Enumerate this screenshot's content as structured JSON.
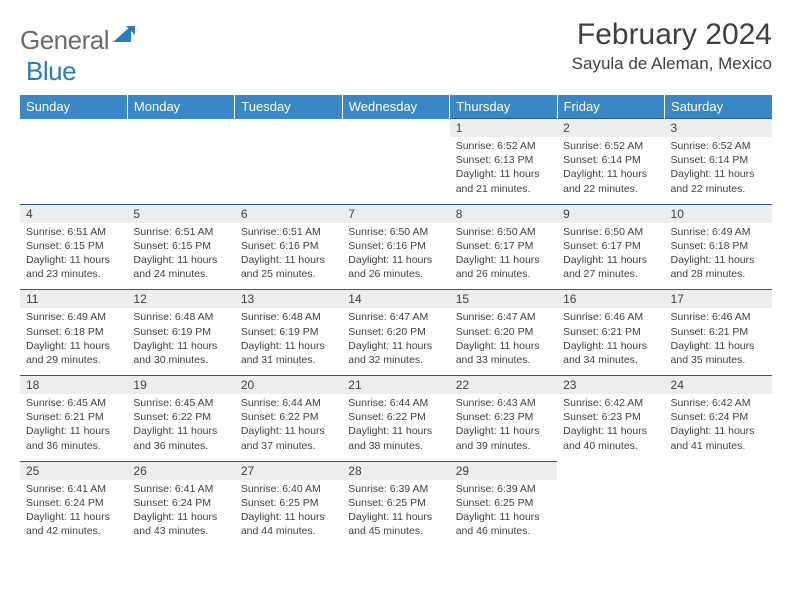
{
  "logo": {
    "text1": "General",
    "text2": "Blue",
    "color1": "#6b6b6b",
    "color2": "#2a7bbf"
  },
  "title": "February 2024",
  "location": "Sayula de Aleman, Mexico",
  "header_bg": "#3a87c8",
  "daynum_bg": "#ededed",
  "border_color": "#2a5a8a",
  "weekdays": [
    "Sunday",
    "Monday",
    "Tuesday",
    "Wednesday",
    "Thursday",
    "Friday",
    "Saturday"
  ],
  "weeks": [
    [
      null,
      null,
      null,
      null,
      {
        "n": "1",
        "sr": "6:52 AM",
        "ss": "6:13 PM",
        "dl": "11 hours and 21 minutes."
      },
      {
        "n": "2",
        "sr": "6:52 AM",
        "ss": "6:14 PM",
        "dl": "11 hours and 22 minutes."
      },
      {
        "n": "3",
        "sr": "6:52 AM",
        "ss": "6:14 PM",
        "dl": "11 hours and 22 minutes."
      }
    ],
    [
      {
        "n": "4",
        "sr": "6:51 AM",
        "ss": "6:15 PM",
        "dl": "11 hours and 23 minutes."
      },
      {
        "n": "5",
        "sr": "6:51 AM",
        "ss": "6:15 PM",
        "dl": "11 hours and 24 minutes."
      },
      {
        "n": "6",
        "sr": "6:51 AM",
        "ss": "6:16 PM",
        "dl": "11 hours and 25 minutes."
      },
      {
        "n": "7",
        "sr": "6:50 AM",
        "ss": "6:16 PM",
        "dl": "11 hours and 26 minutes."
      },
      {
        "n": "8",
        "sr": "6:50 AM",
        "ss": "6:17 PM",
        "dl": "11 hours and 26 minutes."
      },
      {
        "n": "9",
        "sr": "6:50 AM",
        "ss": "6:17 PM",
        "dl": "11 hours and 27 minutes."
      },
      {
        "n": "10",
        "sr": "6:49 AM",
        "ss": "6:18 PM",
        "dl": "11 hours and 28 minutes."
      }
    ],
    [
      {
        "n": "11",
        "sr": "6:49 AM",
        "ss": "6:18 PM",
        "dl": "11 hours and 29 minutes."
      },
      {
        "n": "12",
        "sr": "6:48 AM",
        "ss": "6:19 PM",
        "dl": "11 hours and 30 minutes."
      },
      {
        "n": "13",
        "sr": "6:48 AM",
        "ss": "6:19 PM",
        "dl": "11 hours and 31 minutes."
      },
      {
        "n": "14",
        "sr": "6:47 AM",
        "ss": "6:20 PM",
        "dl": "11 hours and 32 minutes."
      },
      {
        "n": "15",
        "sr": "6:47 AM",
        "ss": "6:20 PM",
        "dl": "11 hours and 33 minutes."
      },
      {
        "n": "16",
        "sr": "6:46 AM",
        "ss": "6:21 PM",
        "dl": "11 hours and 34 minutes."
      },
      {
        "n": "17",
        "sr": "6:46 AM",
        "ss": "6:21 PM",
        "dl": "11 hours and 35 minutes."
      }
    ],
    [
      {
        "n": "18",
        "sr": "6:45 AM",
        "ss": "6:21 PM",
        "dl": "11 hours and 36 minutes."
      },
      {
        "n": "19",
        "sr": "6:45 AM",
        "ss": "6:22 PM",
        "dl": "11 hours and 36 minutes."
      },
      {
        "n": "20",
        "sr": "6:44 AM",
        "ss": "6:22 PM",
        "dl": "11 hours and 37 minutes."
      },
      {
        "n": "21",
        "sr": "6:44 AM",
        "ss": "6:22 PM",
        "dl": "11 hours and 38 minutes."
      },
      {
        "n": "22",
        "sr": "6:43 AM",
        "ss": "6:23 PM",
        "dl": "11 hours and 39 minutes."
      },
      {
        "n": "23",
        "sr": "6:42 AM",
        "ss": "6:23 PM",
        "dl": "11 hours and 40 minutes."
      },
      {
        "n": "24",
        "sr": "6:42 AM",
        "ss": "6:24 PM",
        "dl": "11 hours and 41 minutes."
      }
    ],
    [
      {
        "n": "25",
        "sr": "6:41 AM",
        "ss": "6:24 PM",
        "dl": "11 hours and 42 minutes."
      },
      {
        "n": "26",
        "sr": "6:41 AM",
        "ss": "6:24 PM",
        "dl": "11 hours and 43 minutes."
      },
      {
        "n": "27",
        "sr": "6:40 AM",
        "ss": "6:25 PM",
        "dl": "11 hours and 44 minutes."
      },
      {
        "n": "28",
        "sr": "6:39 AM",
        "ss": "6:25 PM",
        "dl": "11 hours and 45 minutes."
      },
      {
        "n": "29",
        "sr": "6:39 AM",
        "ss": "6:25 PM",
        "dl": "11 hours and 46 minutes."
      },
      null,
      null
    ]
  ],
  "labels": {
    "sunrise": "Sunrise:",
    "sunset": "Sunset:",
    "daylight": "Daylight:"
  }
}
